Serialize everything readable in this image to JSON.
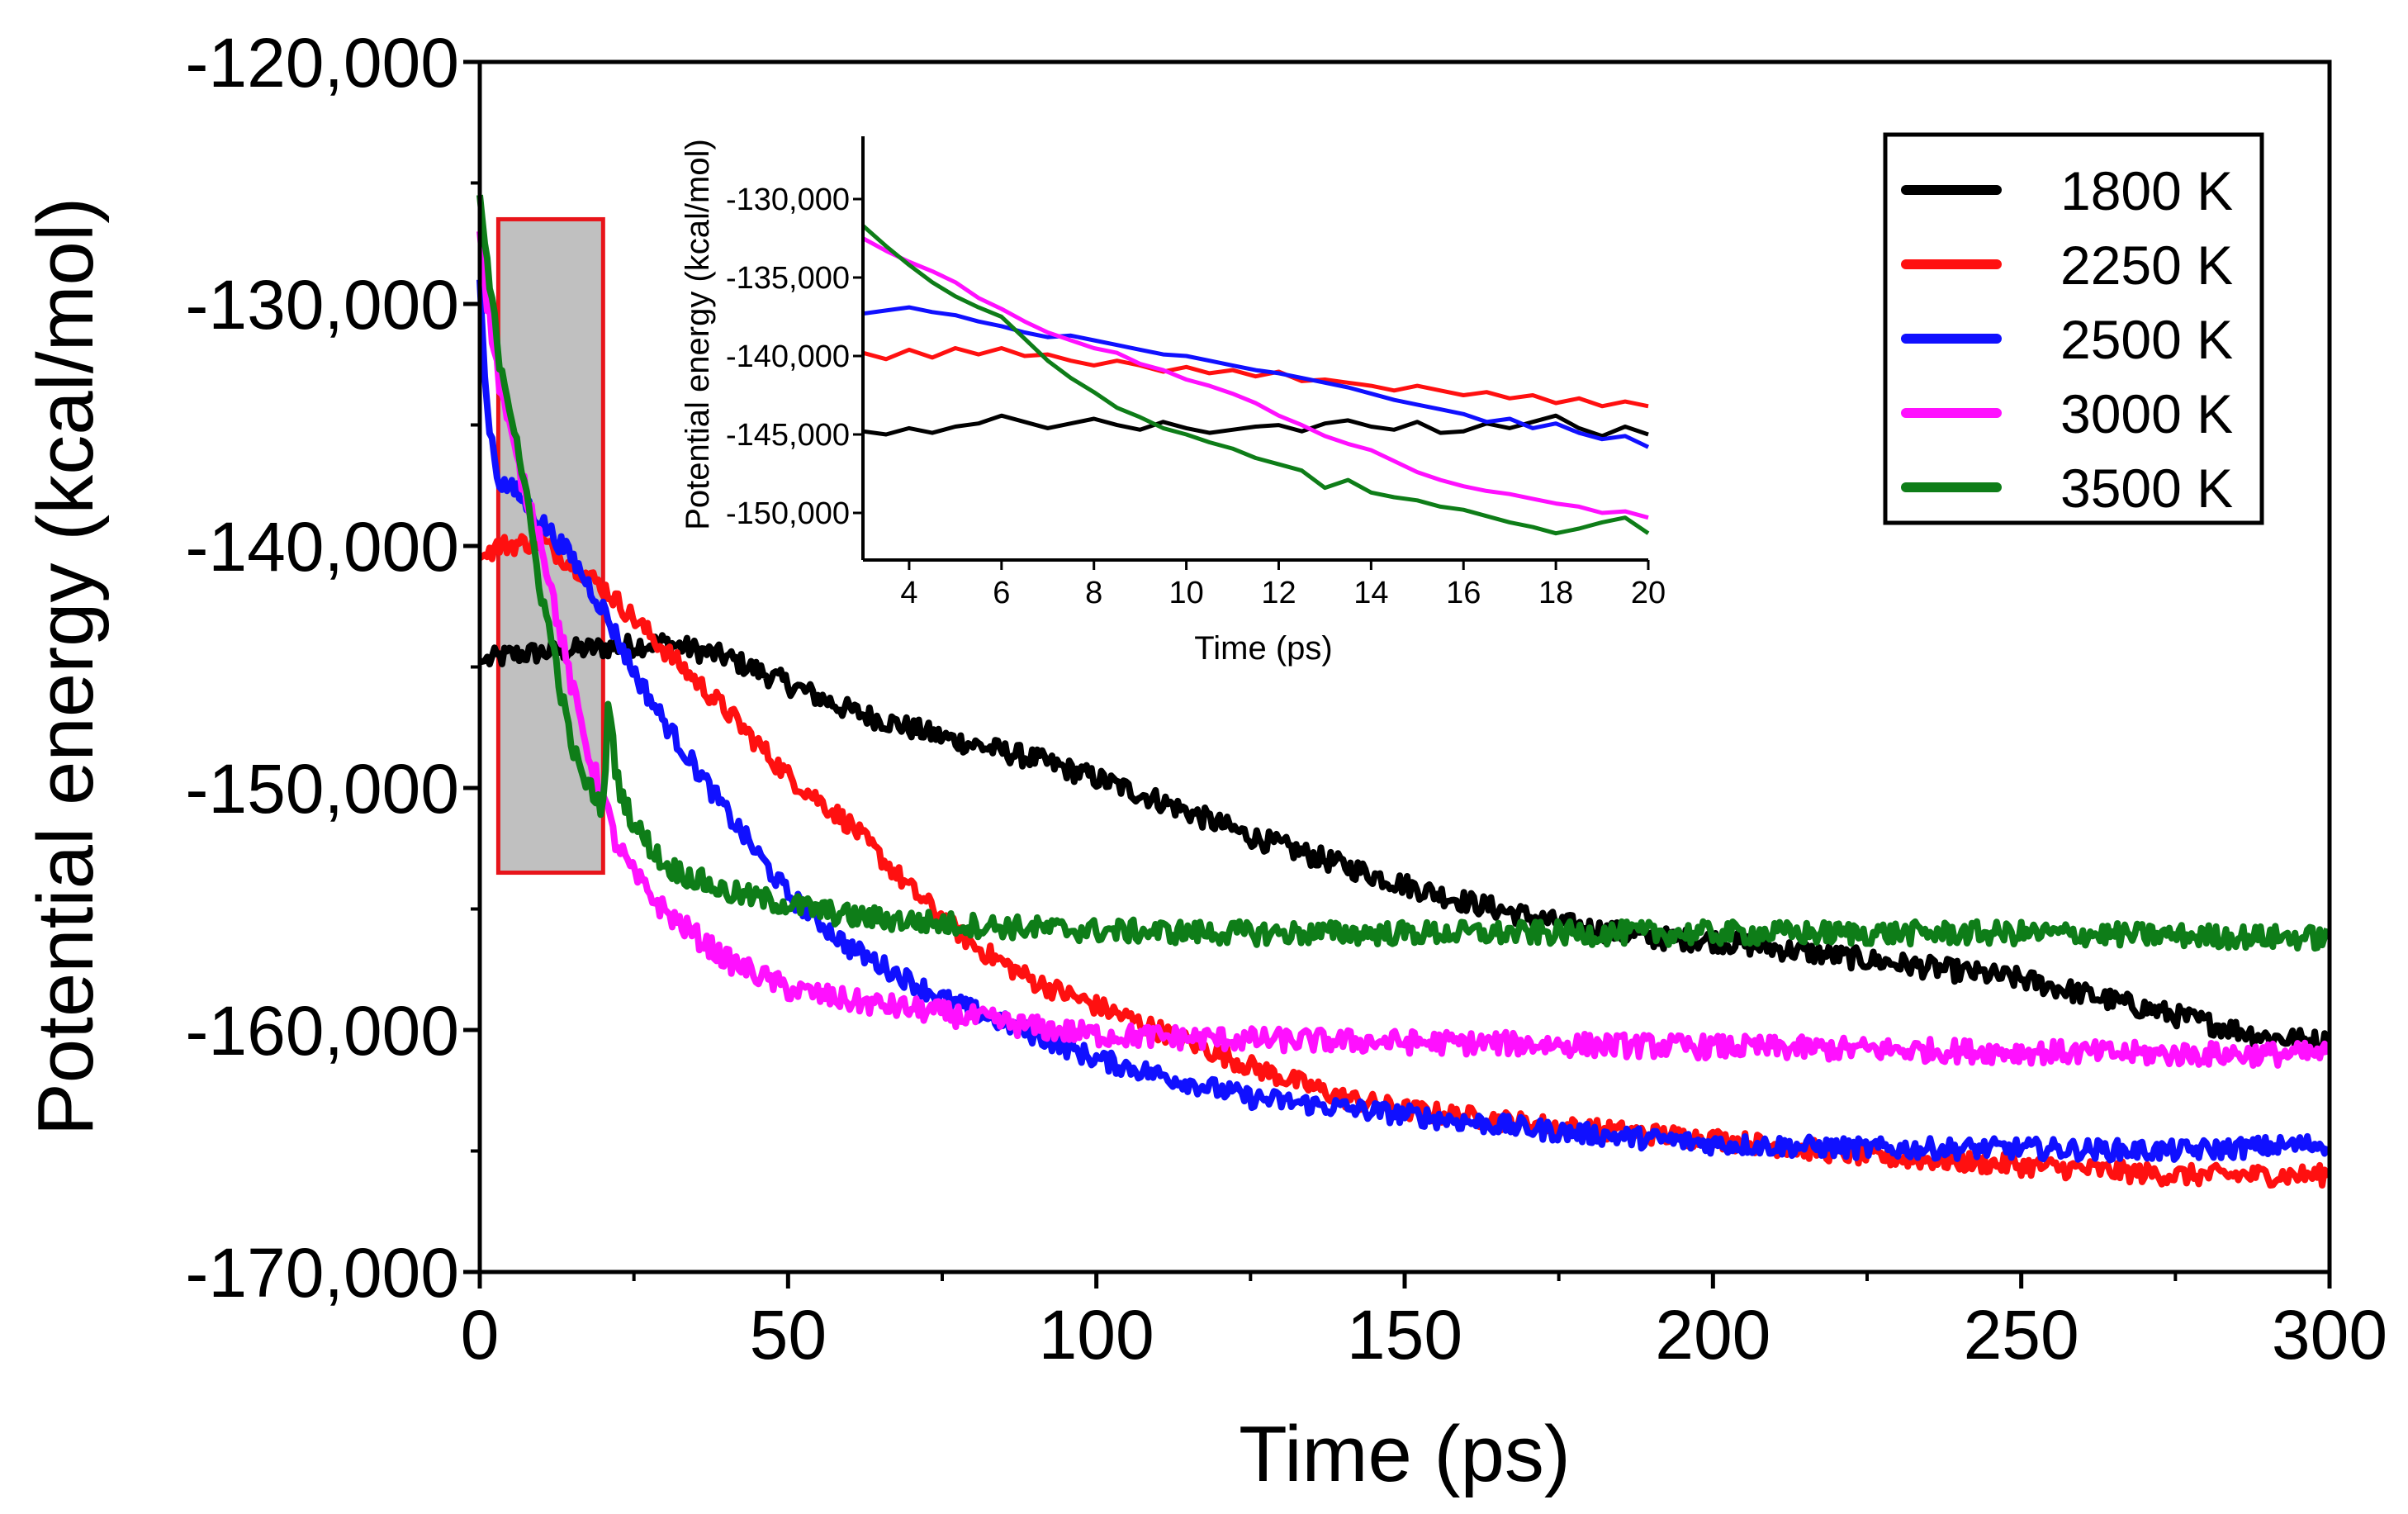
{
  "chart_data": [
    {
      "type": "line",
      "name": "main",
      "title": "",
      "xlabel": "Time (ps)",
      "ylabel": "Potential energy (kcal/mol)",
      "xlim": [
        0,
        300
      ],
      "ylim": [
        -170000,
        -120000
      ],
      "xticks": [
        0,
        50,
        100,
        150,
        200,
        250,
        300
      ],
      "xtick_labels": [
        "0",
        "50",
        "100",
        "150",
        "200",
        "250",
        "300"
      ],
      "yticks": [
        -170000,
        -160000,
        -150000,
        -140000,
        -130000,
        -120000
      ],
      "ytick_labels": [
        "-170,000",
        "-160,000",
        "-150,000",
        "-140,000",
        "-130,000",
        "-120,000"
      ],
      "grid": false,
      "legend_position": "top-right",
      "highlight_box": {
        "x": [
          3,
          20
        ],
        "y": [
          -153500,
          -126500
        ],
        "fill": "#c0c0c0",
        "stroke": "#e8141a"
      },
      "series": [
        {
          "name": "1800 K",
          "color": "#000000",
          "noise": 450,
          "x": [
            0,
            5,
            20,
            30,
            40,
            50,
            60,
            75,
            90,
            100,
            110,
            125,
            140,
            150,
            160,
            175,
            190,
            200,
            225,
            250,
            275,
            290,
            300
          ],
          "y": [
            -144800,
            -144500,
            -144200,
            -144000,
            -144600,
            -145700,
            -146800,
            -147900,
            -148800,
            -149600,
            -150500,
            -152000,
            -153200,
            -154000,
            -154700,
            -155600,
            -156200,
            -156300,
            -157100,
            -157900,
            -159400,
            -160300,
            -160500
          ]
        },
        {
          "name": "2250 K",
          "color": "#ff1010",
          "noise": 420,
          "x": [
            0,
            3,
            10,
            20,
            30,
            40,
            50,
            60,
            70,
            80,
            90,
            100,
            110,
            125,
            140,
            150,
            175,
            200,
            225,
            250,
            275,
            300
          ],
          "y": [
            -140500,
            -140000,
            -139800,
            -141700,
            -144300,
            -146800,
            -149500,
            -151500,
            -154200,
            -156500,
            -158000,
            -159000,
            -160000,
            -161500,
            -162800,
            -163300,
            -164000,
            -164500,
            -165200,
            -165600,
            -166000,
            -166000
          ]
        },
        {
          "name": "2500 K",
          "color": "#1010ff",
          "noise": 420,
          "x": [
            0,
            1,
            3,
            6,
            10,
            15,
            20,
            25,
            30,
            40,
            50,
            60,
            75,
            90,
            100,
            125,
            150,
            175,
            200,
            225,
            250,
            275,
            300
          ],
          "y": [
            -129000,
            -134000,
            -137300,
            -137800,
            -139000,
            -140500,
            -142600,
            -145200,
            -147300,
            -151000,
            -154400,
            -156600,
            -158700,
            -160200,
            -161200,
            -162800,
            -163500,
            -164200,
            -164700,
            -164900,
            -164900,
            -165000,
            -164700
          ]
        },
        {
          "name": "3000 K",
          "color": "#ff10ff",
          "noise": 480,
          "x": [
            0,
            1,
            3,
            6,
            8,
            10,
            12,
            15,
            18,
            20,
            22,
            25,
            30,
            40,
            50,
            60,
            75,
            90,
            100,
            125,
            150,
            175,
            200,
            225,
            250,
            275,
            300
          ],
          "y": [
            -127000,
            -129500,
            -133000,
            -136500,
            -138300,
            -139800,
            -142300,
            -145900,
            -148900,
            -150400,
            -152200,
            -153600,
            -155100,
            -157100,
            -158300,
            -158800,
            -159300,
            -159900,
            -160200,
            -160400,
            -160500,
            -160600,
            -160700,
            -160800,
            -160900,
            -161000,
            -161000
          ]
        },
        {
          "name": "3500 K",
          "color": "#0e7d18",
          "noise": 480,
          "x": [
            0,
            1,
            3,
            6,
            8,
            10,
            12,
            14,
            16,
            18,
            20,
            21,
            22,
            25,
            30,
            40,
            50,
            60,
            75,
            90,
            100,
            125,
            150,
            175,
            200,
            225,
            250,
            275,
            300
          ],
          "y": [
            -125500,
            -128000,
            -132000,
            -135500,
            -138800,
            -142000,
            -144300,
            -147200,
            -149200,
            -150100,
            -150800,
            -146000,
            -149500,
            -151500,
            -153200,
            -154300,
            -154800,
            -155300,
            -155600,
            -155800,
            -155900,
            -156000,
            -156000,
            -156000,
            -156000,
            -156000,
            -156000,
            -156100,
            -156200
          ]
        }
      ]
    },
    {
      "type": "line",
      "name": "inset",
      "title": "",
      "xlabel": "Time (ps)",
      "ylabel": "Potential energy (kcal/mol)",
      "xlim": [
        3,
        20
      ],
      "ylim": [
        -153000,
        -126000
      ],
      "xticks": [
        4,
        6,
        8,
        10,
        12,
        14,
        16,
        18,
        20
      ],
      "xtick_labels": [
        "4",
        "6",
        "8",
        "10",
        "12",
        "14",
        "16",
        "18",
        "20"
      ],
      "yticks": [
        -150000,
        -145000,
        -140000,
        -135000,
        -130000
      ],
      "ytick_labels": [
        "-150,000",
        "-145,000",
        "-140,000",
        "-135,000",
        "-130,000"
      ],
      "grid": false,
      "series": [
        {
          "name": "1800 K",
          "color": "#000000",
          "x": [
            3,
            3.5,
            4,
            4.5,
            5,
            5.5,
            6,
            6.5,
            7,
            7.5,
            8,
            8.5,
            9,
            9.5,
            10,
            10.5,
            11,
            11.5,
            12,
            12.5,
            13,
            13.5,
            14,
            14.5,
            15,
            15.5,
            16,
            16.5,
            17,
            17.5,
            18,
            18.5,
            19,
            19.5,
            20
          ],
          "y": [
            -144800,
            -145000,
            -144600,
            -144900,
            -144500,
            -144300,
            -143800,
            -144200,
            -144600,
            -144300,
            -144000,
            -144400,
            -144700,
            -144200,
            -144600,
            -144900,
            -144700,
            -144500,
            -144400,
            -144800,
            -144300,
            -144100,
            -144500,
            -144700,
            -144200,
            -144900,
            -144800,
            -144300,
            -144600,
            -144200,
            -143800,
            -144600,
            -145100,
            -144500,
            -145000
          ]
        },
        {
          "name": "2250 K",
          "color": "#ff1010",
          "x": [
            3,
            3.5,
            4,
            4.5,
            5,
            5.5,
            6,
            6.5,
            7,
            7.5,
            8,
            8.5,
            9,
            9.5,
            10,
            10.5,
            11,
            11.5,
            12,
            12.5,
            13,
            13.5,
            14,
            14.5,
            15,
            15.5,
            16,
            16.5,
            17,
            17.5,
            18,
            18.5,
            19,
            19.5,
            20
          ],
          "y": [
            -139800,
            -140200,
            -139600,
            -140100,
            -139500,
            -139900,
            -139500,
            -140000,
            -139900,
            -140300,
            -140600,
            -140300,
            -140600,
            -141000,
            -140700,
            -141100,
            -140900,
            -141300,
            -141000,
            -141600,
            -141500,
            -141700,
            -141900,
            -142200,
            -141900,
            -142200,
            -142500,
            -142300,
            -142700,
            -142500,
            -143000,
            -142700,
            -143200,
            -142900,
            -143200
          ]
        },
        {
          "name": "2500 K",
          "color": "#1010ff",
          "x": [
            3,
            3.5,
            4,
            4.5,
            5,
            5.5,
            6,
            6.5,
            7,
            7.5,
            8,
            8.5,
            9,
            9.5,
            10,
            10.5,
            11,
            11.5,
            12,
            12.5,
            13,
            13.5,
            14,
            14.5,
            15,
            15.5,
            16,
            16.5,
            17,
            17.5,
            18,
            18.5,
            19,
            19.5,
            20
          ],
          "y": [
            -137300,
            -137100,
            -136900,
            -137200,
            -137400,
            -137800,
            -138100,
            -138500,
            -138800,
            -138700,
            -139000,
            -139300,
            -139600,
            -139900,
            -140000,
            -140300,
            -140600,
            -140900,
            -141100,
            -141400,
            -141700,
            -142000,
            -142400,
            -142800,
            -143100,
            -143400,
            -143700,
            -144200,
            -144000,
            -144600,
            -144300,
            -144900,
            -145300,
            -145100,
            -145800
          ]
        },
        {
          "name": "3000 K",
          "color": "#ff10ff",
          "x": [
            3,
            3.5,
            4,
            4.5,
            5,
            5.5,
            6,
            6.5,
            7,
            7.5,
            8,
            8.5,
            9,
            9.5,
            10,
            10.5,
            11,
            11.5,
            12,
            12.5,
            13,
            13.5,
            14,
            14.5,
            15,
            15.5,
            16,
            16.5,
            17,
            17.5,
            18,
            18.5,
            19,
            19.5,
            20
          ],
          "y": [
            -132500,
            -133300,
            -134000,
            -134600,
            -135300,
            -136300,
            -137000,
            -137800,
            -138500,
            -139000,
            -139500,
            -139800,
            -140500,
            -140900,
            -141500,
            -141900,
            -142400,
            -143000,
            -143800,
            -144400,
            -145100,
            -145600,
            -146000,
            -146700,
            -147400,
            -147900,
            -148300,
            -148600,
            -148800,
            -149100,
            -149400,
            -149600,
            -150000,
            -149900,
            -150300
          ]
        },
        {
          "name": "3500 K",
          "color": "#0e7d18",
          "x": [
            3,
            3.5,
            4,
            4.5,
            5,
            5.5,
            6,
            6.5,
            7,
            7.5,
            8,
            8.5,
            9,
            9.5,
            10,
            10.5,
            11,
            11.5,
            12,
            12.5,
            13,
            13.5,
            14,
            14.5,
            15,
            15.5,
            16,
            16.5,
            17,
            17.5,
            18,
            18.5,
            19,
            19.5,
            20
          ],
          "y": [
            -131700,
            -133000,
            -134200,
            -135300,
            -136200,
            -136900,
            -137500,
            -138900,
            -140300,
            -141400,
            -142300,
            -143300,
            -143900,
            -144600,
            -145000,
            -145500,
            -145900,
            -146500,
            -146900,
            -147300,
            -148400,
            -147900,
            -148700,
            -149000,
            -149200,
            -149600,
            -149800,
            -150200,
            -150600,
            -150900,
            -151300,
            -151000,
            -150600,
            -150300,
            -151300
          ]
        }
      ]
    }
  ]
}
